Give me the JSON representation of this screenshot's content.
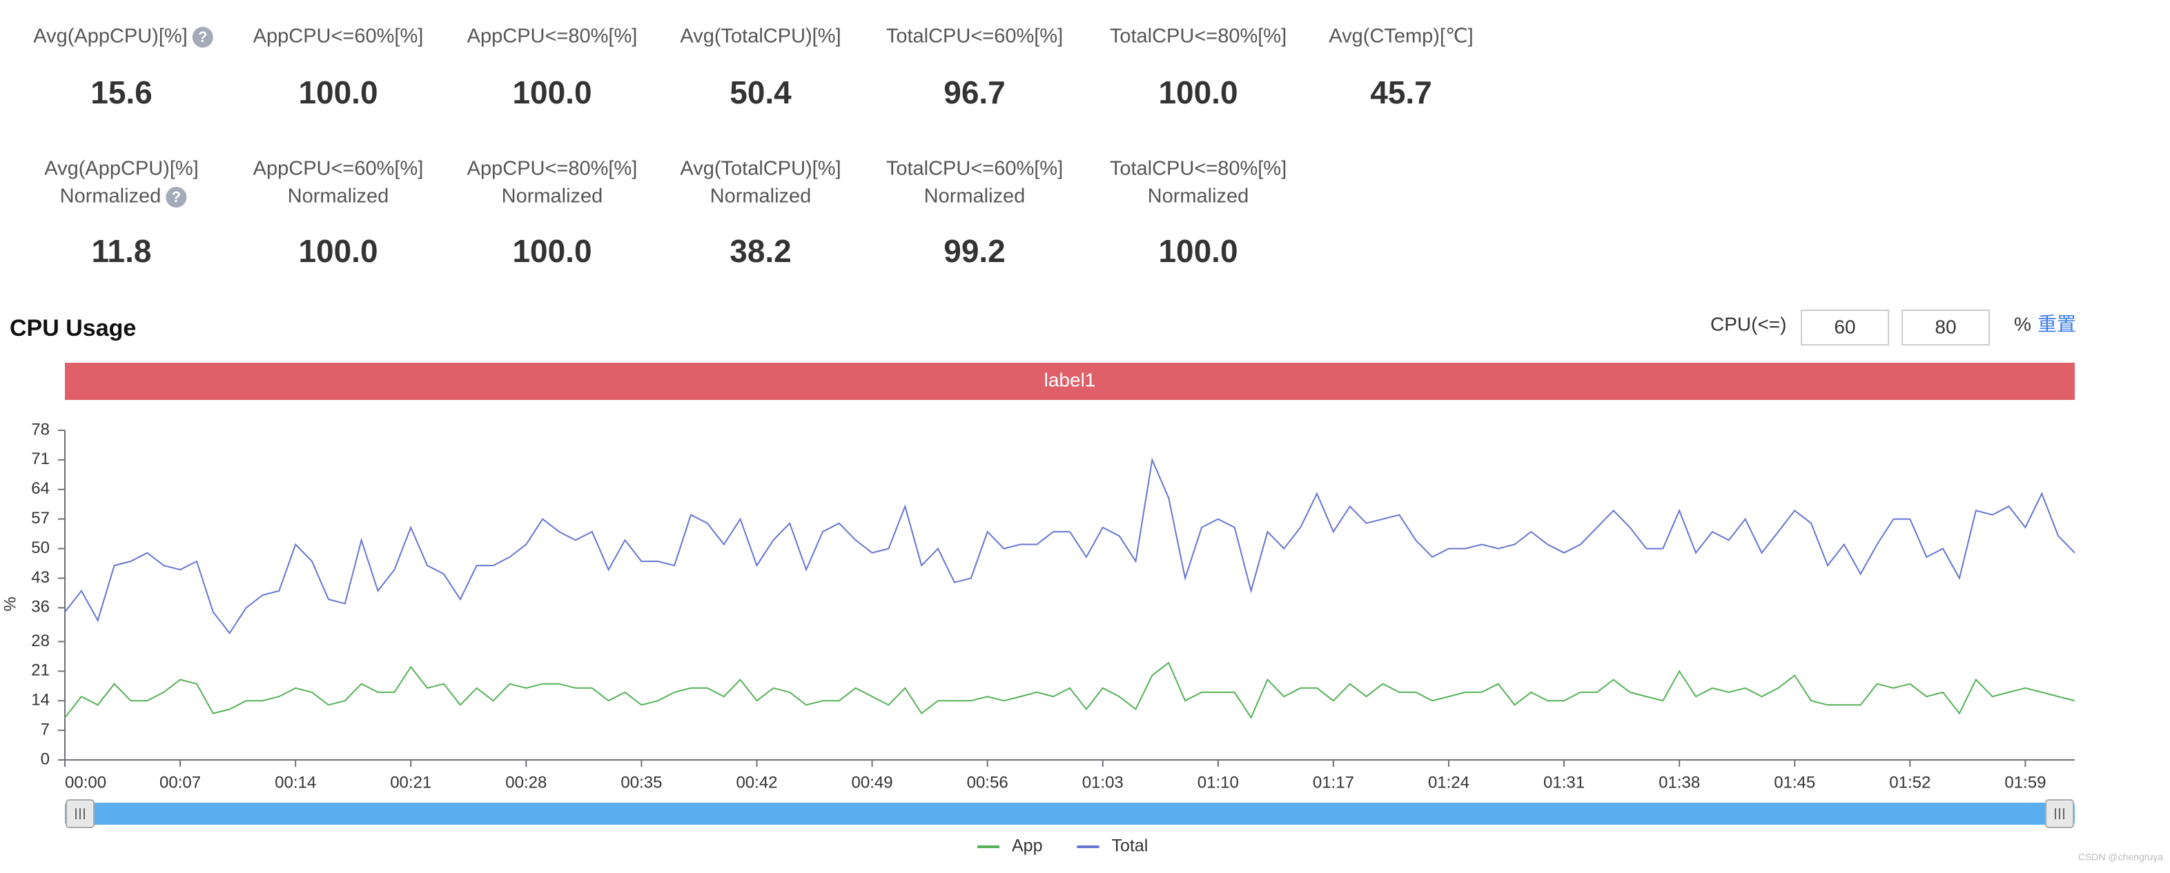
{
  "metrics": [
    [
      {
        "label": [
          "Avg(AppCPU)[%]"
        ],
        "value": "15.6"
      },
      {
        "label": [
          "AppCPU<=60%[%]"
        ],
        "value": "100.0"
      },
      {
        "label": [
          "AppCPU<=80%[%]"
        ],
        "value": "100.0"
      },
      {
        "label": [
          "Avg(TotalCPU)[%]"
        ],
        "value": "50.4"
      },
      {
        "label": [
          "TotalCPU<=60%[%]"
        ],
        "value": "96.7"
      },
      {
        "label": [
          "TotalCPU<=80%[%]"
        ],
        "value": "100.0"
      },
      {
        "label": [
          "Avg(CTemp)[℃]"
        ],
        "value": "45.7"
      }
    ],
    [
      {
        "label": [
          "Avg(AppCPU)[%]",
          "Normalized"
        ],
        "value": "11.8"
      },
      {
        "label": [
          "AppCPU<=60%[%]",
          "Normalized"
        ],
        "value": "100.0"
      },
      {
        "label": [
          "AppCPU<=80%[%]",
          "Normalized"
        ],
        "value": "100.0"
      },
      {
        "label": [
          "Avg(TotalCPU)[%]",
          "Normalized"
        ],
        "value": "38.2"
      },
      {
        "label": [
          "TotalCPU<=60%[%]",
          "Normalized"
        ],
        "value": "99.2"
      },
      {
        "label": [
          "TotalCPU<=80%[%]",
          "Normalized"
        ],
        "value": "100.0"
      }
    ]
  ],
  "controls": {
    "label": "CPU(<=)",
    "inputs": [
      "60",
      "80"
    ],
    "unit": "%",
    "reset": "重置"
  },
  "watermark": "CSDN @chengruya",
  "chart_data": {
    "type": "line",
    "title": "CPU Usage",
    "band_label": "label1",
    "band_color": "#e0606a",
    "ylabel": "%",
    "categories": [
      "00:00",
      null,
      null,
      null,
      null,
      null,
      null,
      "00:07",
      null,
      null,
      null,
      null,
      null,
      null,
      "00:14",
      null,
      null,
      null,
      null,
      null,
      null,
      "00:21",
      null,
      null,
      null,
      null,
      null,
      null,
      "00:28",
      null,
      null,
      null,
      null,
      null,
      null,
      "00:35",
      null,
      null,
      null,
      null,
      null,
      null,
      "00:42",
      null,
      null,
      null,
      null,
      null,
      null,
      "00:49",
      null,
      null,
      null,
      null,
      null,
      null,
      "00:56",
      null,
      null,
      null,
      null,
      null,
      null,
      "01:03",
      null,
      null,
      null,
      null,
      null,
      null,
      "01:10",
      null,
      null,
      null,
      null,
      null,
      null,
      "01:17",
      null,
      null,
      null,
      null,
      null,
      null,
      "01:24",
      null,
      null,
      null,
      null,
      null,
      null,
      "01:31",
      null,
      null,
      null,
      null,
      null,
      null,
      "01:38",
      null,
      null,
      null,
      null,
      null,
      null,
      "01:45",
      null,
      null,
      null,
      null,
      null,
      null,
      "01:52",
      null,
      null,
      null,
      null,
      null,
      null,
      "01:59",
      null,
      null,
      null
    ],
    "series": [
      {
        "name": "App",
        "color": "#55b257",
        "values": [
          10,
          15,
          13,
          18,
          14,
          14,
          16,
          19,
          18,
          11,
          12,
          14,
          14,
          15,
          17,
          16,
          13,
          14,
          18,
          16,
          16,
          22,
          17,
          18,
          13,
          17,
          14,
          18,
          17,
          18,
          18,
          17,
          17,
          14,
          16,
          13,
          14,
          16,
          17,
          17,
          15,
          19,
          14,
          17,
          16,
          13,
          14,
          14,
          17,
          15,
          13,
          17,
          11,
          14,
          14,
          14,
          15,
          14,
          15,
          16,
          15,
          17,
          12,
          17,
          15,
          12,
          20,
          23,
          14,
          16,
          16,
          16,
          10,
          19,
          15,
          17,
          17,
          14,
          18,
          15,
          18,
          16,
          16,
          14,
          15,
          16,
          16,
          18,
          13,
          16,
          14,
          14,
          16,
          16,
          19,
          16,
          15,
          14,
          21,
          15,
          17,
          16,
          17,
          15,
          17,
          20,
          14,
          13,
          13,
          13,
          18,
          17,
          18,
          15,
          16,
          11,
          19,
          15,
          16,
          17,
          16,
          15,
          14
        ]
      },
      {
        "name": "Total",
        "color": "#6676d2",
        "values": [
          35,
          40,
          33,
          46,
          47,
          49,
          46,
          45,
          47,
          35,
          30,
          36,
          39,
          40,
          51,
          47,
          38,
          37,
          52,
          40,
          45,
          55,
          46,
          44,
          38,
          46,
          46,
          48,
          51,
          57,
          54,
          52,
          54,
          45,
          52,
          47,
          47,
          46,
          58,
          56,
          51,
          57,
          46,
          52,
          56,
          45,
          54,
          56,
          52,
          49,
          50,
          60,
          46,
          50,
          42,
          43,
          54,
          50,
          51,
          51,
          54,
          54,
          48,
          55,
          53,
          47,
          71,
          62,
          43,
          55,
          57,
          55,
          40,
          54,
          50,
          55,
          63,
          54,
          60,
          56,
          57,
          58,
          52,
          48,
          50,
          50,
          51,
          50,
          51,
          54,
          51,
          49,
          51,
          55,
          59,
          55,
          50,
          50,
          59,
          49,
          54,
          52,
          57,
          49,
          54,
          59,
          56,
          46,
          51,
          44,
          51,
          57,
          57,
          48,
          50,
          43,
          59,
          58,
          60,
          55,
          63,
          53,
          49
        ]
      }
    ],
    "ylim": [
      0,
      78
    ],
    "yticks": [
      0,
      7,
      14,
      21,
      28,
      36,
      43,
      50,
      57,
      64,
      71,
      78
    ],
    "grid": false
  }
}
